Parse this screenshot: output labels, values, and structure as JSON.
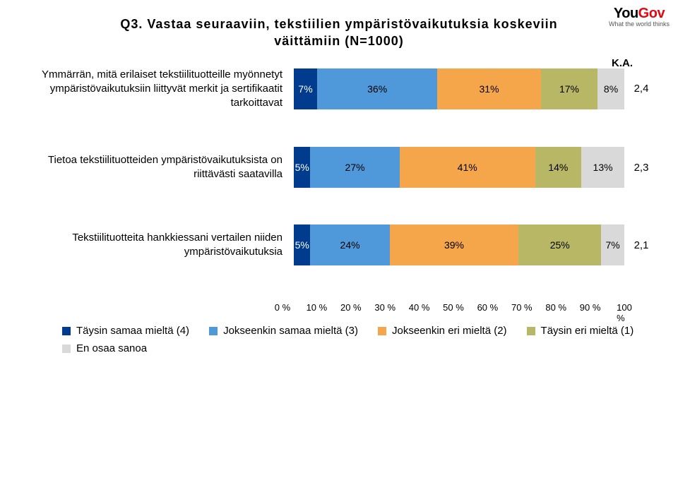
{
  "logo": {
    "brand_part1": "You",
    "brand_part2": "Gov",
    "tagline": "What the world thinks"
  },
  "title_line1": "Q3. Vastaa seuraaviin, tekstiilien ympäristövaikutuksia koskeviin",
  "title_line2": "väittämiin (N=1000)",
  "ka_header": "K.A.",
  "colors": {
    "c4": "#003b8e",
    "c3": "#4f98d9",
    "c2": "#f5a54a",
    "c1": "#b7b766",
    "c0": "#d9d9d9",
    "background": "#ffffff"
  },
  "axis": {
    "min": 0,
    "max": 100,
    "step": 10,
    "labels": [
      "0 %",
      "10 %",
      "20 %",
      "30 %",
      "40 %",
      "50 %",
      "60 %",
      "70 %",
      "80 %",
      "90 %",
      "100 %"
    ]
  },
  "rows": [
    {
      "label": "Ymmärrän, mitä erilaiset tekstiilituotteille myönnetyt ympäristövaikutuksiin liittyvät merkit ja sertifikaatit tarkoittavat",
      "segments": [
        {
          "key": "c4",
          "value": 7,
          "label": "7%",
          "text": "#ffffff"
        },
        {
          "key": "c3",
          "value": 36,
          "label": "36%",
          "text": "#000000"
        },
        {
          "key": "c2",
          "value": 31,
          "label": "31%",
          "text": "#000000"
        },
        {
          "key": "c1",
          "value": 17,
          "label": "17%",
          "text": "#000000"
        },
        {
          "key": "c0",
          "value": 8,
          "label": "8%",
          "text": "#000000"
        }
      ],
      "ka": "2,4"
    },
    {
      "label": "Tietoa tekstiilituotteiden ympäristövaikutuksista on riittävästi saatavilla",
      "segments": [
        {
          "key": "c4",
          "value": 5,
          "label": "5%",
          "text": "#ffffff"
        },
        {
          "key": "c3",
          "value": 27,
          "label": "27%",
          "text": "#000000"
        },
        {
          "key": "c2",
          "value": 41,
          "label": "41%",
          "text": "#000000"
        },
        {
          "key": "c1",
          "value": 14,
          "label": "14%",
          "text": "#000000"
        },
        {
          "key": "c0",
          "value": 13,
          "label": "13%",
          "text": "#000000"
        }
      ],
      "ka": "2,3"
    },
    {
      "label": "Tekstiilituotteita hankkiessani vertailen niiden ympäristövaikutuksia",
      "segments": [
        {
          "key": "c4",
          "value": 5,
          "label": "5%",
          "text": "#ffffff"
        },
        {
          "key": "c3",
          "value": 24,
          "label": "24%",
          "text": "#000000"
        },
        {
          "key": "c2",
          "value": 39,
          "label": "39%",
          "text": "#000000"
        },
        {
          "key": "c1",
          "value": 25,
          "label": "25%",
          "text": "#000000"
        },
        {
          "key": "c0",
          "value": 7,
          "label": "7%",
          "text": "#000000"
        }
      ],
      "ka": "2,1"
    }
  ],
  "legend": [
    {
      "key": "c4",
      "label": "Täysin samaa mieltä (4)"
    },
    {
      "key": "c3",
      "label": "Jokseenkin samaa mieltä (3)"
    },
    {
      "key": "c2",
      "label": "Jokseenkin eri mieltä (2)"
    },
    {
      "key": "c1",
      "label": "Täysin eri mieltä (1)"
    },
    {
      "key": "c0",
      "label": "En osaa sanoa"
    }
  ]
}
